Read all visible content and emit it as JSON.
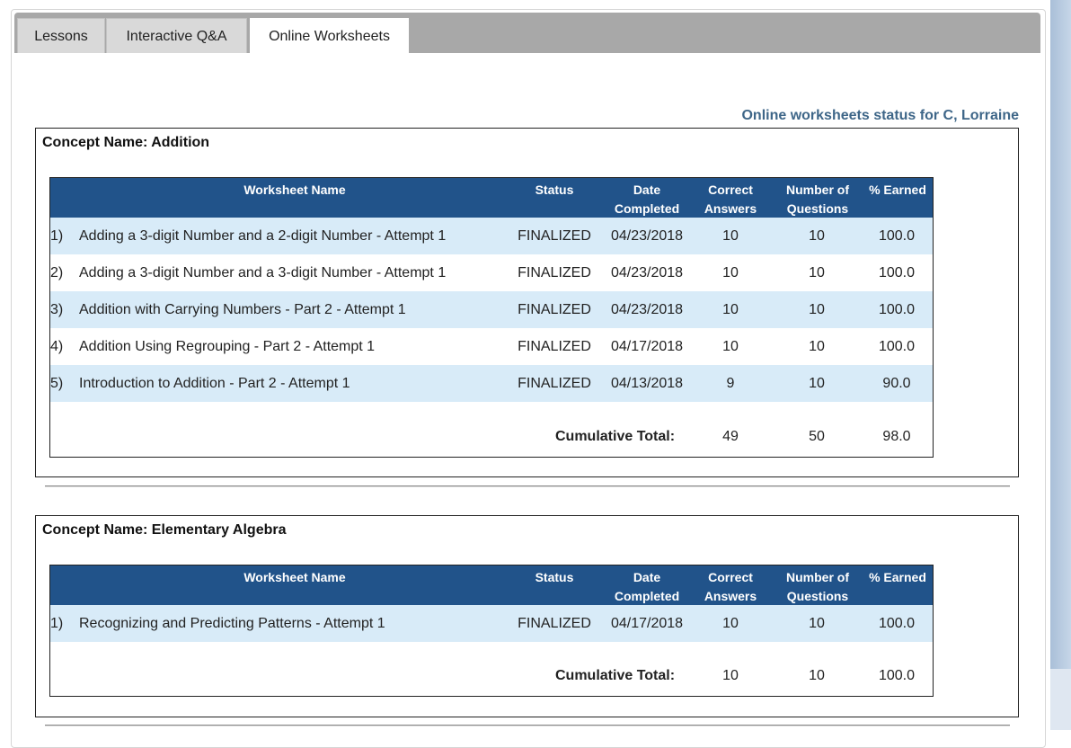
{
  "tabs": [
    {
      "label": "Lessons",
      "active": false
    },
    {
      "label": "Interactive Q&A",
      "active": false
    },
    {
      "label": "Online Worksheets",
      "active": true
    }
  ],
  "status_title": "Online worksheets status for C, Lorraine",
  "columns": {
    "name": "Worksheet Name",
    "status": "Status",
    "date_line1": "Date",
    "date_line2": "Completed",
    "correct_line1": "Correct",
    "correct_line2": "Answers",
    "num_line1": "Number of",
    "num_line2": "Questions",
    "earned": "% Earned"
  },
  "concepts": [
    {
      "label": "Concept Name: Addition",
      "rows": [
        {
          "num": "1)",
          "name": "Adding a 3-digit Number and a 2-digit Number - Attempt 1",
          "status": "FINALIZED",
          "date": "04/23/2018",
          "correct": "10",
          "questions": "10",
          "earned": "100.0"
        },
        {
          "num": "2)",
          "name": "Adding a 3-digit Number and a 3-digit Number - Attempt 1",
          "status": "FINALIZED",
          "date": "04/23/2018",
          "correct": "10",
          "questions": "10",
          "earned": "100.0"
        },
        {
          "num": "3)",
          "name": "Addition with Carrying Numbers - Part 2 - Attempt 1",
          "status": "FINALIZED",
          "date": "04/23/2018",
          "correct": "10",
          "questions": "10",
          "earned": "100.0"
        },
        {
          "num": "4)",
          "name": "Addition Using Regrouping - Part 2 - Attempt 1",
          "status": "FINALIZED",
          "date": "04/17/2018",
          "correct": "10",
          "questions": "10",
          "earned": "100.0"
        },
        {
          "num": "5)",
          "name": "Introduction to Addition - Part 2 - Attempt 1",
          "status": "FINALIZED",
          "date": "04/13/2018",
          "correct": "9",
          "questions": "10",
          "earned": "90.0"
        }
      ],
      "total": {
        "label": "Cumulative Total:",
        "correct": "49",
        "questions": "50",
        "earned": "98.0"
      }
    },
    {
      "label": "Concept Name: Elementary Algebra",
      "rows": [
        {
          "num": "1)",
          "name": "Recognizing and Predicting Patterns - Attempt 1",
          "status": "FINALIZED",
          "date": "04/17/2018",
          "correct": "10",
          "questions": "10",
          "earned": "100.0"
        }
      ],
      "total": {
        "label": "Cumulative Total:",
        "correct": "10",
        "questions": "10",
        "earned": "100.0"
      }
    }
  ]
}
